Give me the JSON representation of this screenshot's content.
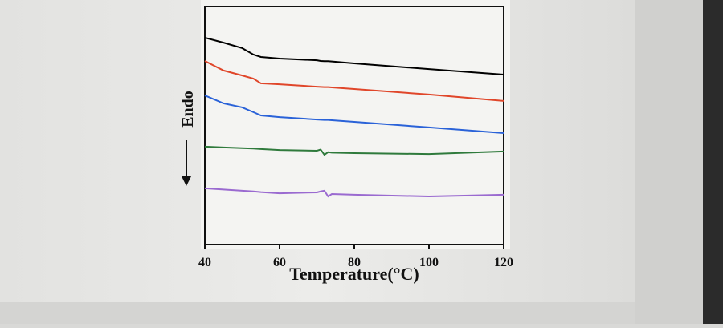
{
  "chart_data": {
    "type": "line",
    "x_label": "Temperature(°C)",
    "y_label": "Endo",
    "x": [
      40,
      45,
      50,
      53,
      55,
      60,
      70,
      71,
      72,
      73,
      74,
      80,
      100,
      120
    ],
    "series": [
      {
        "color": "#000000",
        "values": [
          86.9,
          84.8,
          82.5,
          79.8,
          78.8,
          78.1,
          77.4,
          77.1,
          77.0,
          77.0,
          76.9,
          76.1,
          73.7,
          71.4
        ]
      },
      {
        "color": "#e0462a",
        "values": [
          77.1,
          73.1,
          71.0,
          69.7,
          67.7,
          67.3,
          66.3,
          66.2,
          66.1,
          66.1,
          66.0,
          65.3,
          63.0,
          60.3
        ]
      },
      {
        "color": "#2a62d8",
        "values": [
          62.6,
          59.3,
          57.6,
          55.6,
          54.2,
          53.5,
          52.5,
          52.4,
          52.3,
          52.3,
          52.2,
          51.5,
          49.2,
          46.8
        ]
      },
      {
        "color": "#2f7a3c",
        "values": [
          41.1,
          40.8,
          40.5,
          40.3,
          40.1,
          39.7,
          39.4,
          39.9,
          37.7,
          38.8,
          38.6,
          38.4,
          38.0,
          39.1
        ]
      },
      {
        "color": "#9a6ad0",
        "values": [
          23.6,
          23.1,
          22.6,
          22.3,
          22.0,
          21.5,
          21.9,
          22.3,
          22.6,
          20.2,
          21.2,
          20.9,
          20.2,
          20.9
        ]
      }
    ],
    "xlim": [
      40,
      120
    ],
    "xticks": [
      40,
      60,
      80,
      100,
      120
    ],
    "ylim": [
      0,
      100
    ]
  }
}
